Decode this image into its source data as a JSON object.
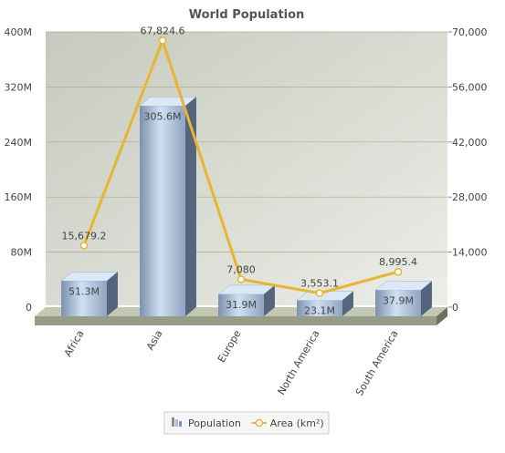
{
  "chart_data": {
    "type": "bar-line",
    "title": "World Population",
    "categories": [
      "Africa",
      "Asia",
      "Europe",
      "North America",
      "South America"
    ],
    "series": [
      {
        "name": "Population",
        "type": "bar",
        "color": "#a9bfd9",
        "values": [
          51300000,
          305600000,
          31900000,
          23100000,
          37900000
        ],
        "value_labels": [
          "51.3M",
          "305.6M",
          "31.9M",
          "23.1M",
          "37.9M"
        ]
      },
      {
        "name": "Area (km²)",
        "type": "line",
        "axis": "y2",
        "color": "#e6b532",
        "values": [
          15679.2,
          67824.6,
          7080,
          3553.1,
          8995.4
        ],
        "value_labels": [
          "15,679.2",
          "67,824.6",
          "7,080",
          "3,553.1",
          "8,995.4"
        ]
      }
    ],
    "ylim": [
      0,
      400000000
    ],
    "yticks": [
      0,
      {
        "value": 80000000,
        "label": "80M"
      },
      {
        "value": 160000000,
        "label": "160M"
      },
      {
        "value": 240000000,
        "label": "240M"
      },
      {
        "value": 320000000,
        "label": "320M"
      },
      {
        "value": 400000000,
        "label": "400M"
      }
    ],
    "y2lim": [
      0,
      70000
    ],
    "y2ticks": [
      0,
      {
        "value": 14000,
        "label": "14,000"
      },
      {
        "value": 28000,
        "label": "28,000"
      },
      {
        "value": 42000,
        "label": "42,000"
      },
      {
        "value": 56000,
        "label": "56,000"
      },
      {
        "value": 70000,
        "label": "70,000"
      }
    ],
    "grid": true,
    "legend": "bottom"
  }
}
